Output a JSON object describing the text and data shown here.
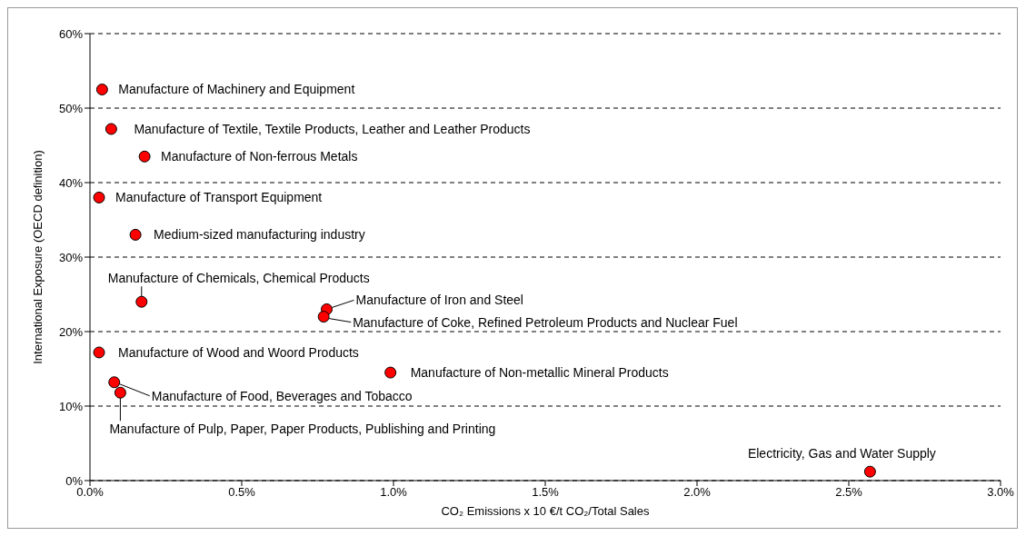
{
  "chart_data": {
    "type": "scatter",
    "xlabel": "CO₂ Emissions x 10 €/t CO₂/Total Sales",
    "ylabel": "International Exposure (OECD definition)",
    "series": [
      {
        "color": "#ff0000",
        "x": [
          0.04,
          0.07,
          0.18,
          0.03,
          0.15,
          0.17,
          0.78,
          0.77,
          0.03,
          0.99,
          0.08,
          0.1,
          2.57
        ],
        "values": [
          52.5,
          47.2,
          43.5,
          38,
          33,
          24,
          23,
          22,
          17.2,
          14.5,
          13.2,
          11.8,
          1.2
        ]
      }
    ],
    "marker": "circle",
    "grid": "y",
    "legend": false,
    "xlim": [
      0,
      3
    ],
    "xticks": [
      {
        "value": 0,
        "label": "0.0%"
      },
      {
        "value": 0.5,
        "label": "0.5%"
      },
      {
        "value": 1,
        "label": "1.0%"
      },
      {
        "value": 1.5,
        "label": "1.5%"
      },
      {
        "value": 2,
        "label": "2.0%"
      },
      {
        "value": 2.5,
        "label": "2.5%"
      },
      {
        "value": 3,
        "label": "3.0%"
      }
    ],
    "ylim": [
      0,
      60
    ],
    "yticks": [
      {
        "value": 0,
        "label": "0%"
      },
      {
        "value": 10,
        "label": "10%"
      },
      {
        "value": 20,
        "label": "20%"
      },
      {
        "value": 30,
        "label": "30%"
      },
      {
        "value": 40,
        "label": "40%"
      },
      {
        "value": 50,
        "label": "50%"
      },
      {
        "value": 60,
        "label": "60%"
      }
    ],
    "annotations": [
      {
        "text": "Manufacture of Machinery and Equipment",
        "x": 0.04,
        "y": 52.5
      },
      {
        "text": "Manufacture of Textile, Textile Products, Leather and Leather Products",
        "x": 0.07,
        "y": 47.2
      },
      {
        "text": "Manufacture of Non-ferrous Metals",
        "x": 0.18,
        "y": 43.5
      },
      {
        "text": "Manufacture of Transport Equipment",
        "x": 0.03,
        "y": 38
      },
      {
        "text": "Medium-sized manufacturing industry",
        "x": 0.15,
        "y": 33
      },
      {
        "text": "Manufacture of Chemicals, Chemical Products",
        "x": 0.17,
        "y": 24
      },
      {
        "text": "Manufacture of Iron and Steel",
        "x": 0.78,
        "y": 23
      },
      {
        "text": "Manufacture of Coke, Refined Petroleum Products and Nuclear Fuel",
        "x": 0.77,
        "y": 22
      },
      {
        "text": "Manufacture of Wood and Woord Products",
        "x": 0.03,
        "y": 17.2
      },
      {
        "text": "Manufacture of Non-metallic Mineral Products",
        "x": 0.99,
        "y": 14.5
      },
      {
        "text": "Manufacture of Food, Beverages and Tobacco",
        "x": 0.08,
        "y": 13.2
      },
      {
        "text": "Manufacture of Pulp, Paper, Paper Products, Publishing and Printing",
        "x": 0.1,
        "y": 11.8
      },
      {
        "text": "Electricity, Gas and Water Supply",
        "x": 2.57,
        "y": 1.2
      }
    ]
  }
}
